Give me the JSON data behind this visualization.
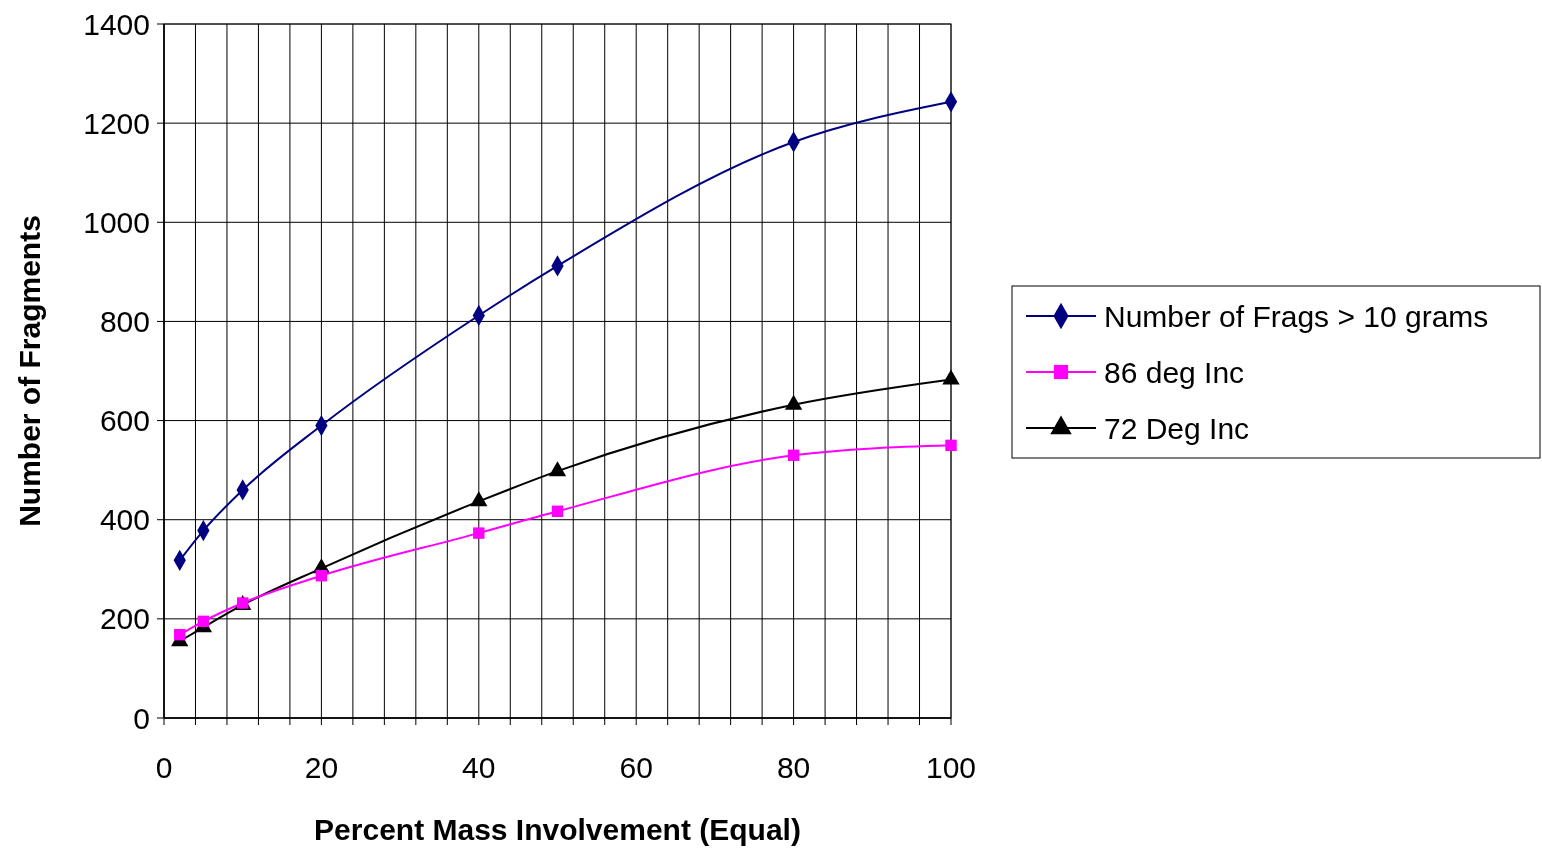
{
  "chart_data": {
    "type": "line",
    "xlabel": "Percent Mass Involvement (Equal)",
    "ylabel": "Number of Fragments",
    "xlim": [
      0,
      100
    ],
    "ylim": [
      0,
      1400
    ],
    "xticks": [
      0,
      {
        "value": 4,
        "label": null
      },
      {
        "value": 8,
        "label": null
      },
      {
        "value": 12,
        "label": null
      },
      {
        "value": 16,
        "label": null
      },
      20,
      {
        "value": 24,
        "label": null
      },
      {
        "value": 28,
        "label": null
      },
      {
        "value": 32,
        "label": null
      },
      {
        "value": 36,
        "label": null
      },
      40,
      {
        "value": 44,
        "label": null
      },
      {
        "value": 48,
        "label": null
      },
      {
        "value": 52,
        "label": null
      },
      {
        "value": 56,
        "label": null
      },
      60,
      {
        "value": 64,
        "label": null
      },
      {
        "value": 68,
        "label": null
      },
      {
        "value": 72,
        "label": null
      },
      {
        "value": 76,
        "label": null
      },
      80,
      {
        "value": 84,
        "label": null
      },
      {
        "value": 88,
        "label": null
      },
      {
        "value": 92,
        "label": null
      },
      {
        "value": 96,
        "label": null
      },
      100
    ],
    "yticks": [
      0,
      200,
      400,
      600,
      800,
      1000,
      1200,
      1400
    ],
    "x": [
      2,
      5,
      10,
      20,
      40,
      50,
      80,
      100
    ],
    "grid": true,
    "legend": "right",
    "line_style": "solid",
    "series": [
      {
        "name": "Number of Frags > 10 grams",
        "color": "#000080",
        "marker": "diamond",
        "values": [
          318,
          378,
          460,
          590,
          812,
          912,
          1162,
          1243
        ]
      },
      {
        "name": "86 deg Inc",
        "color": "#ff00ff",
        "marker": "square",
        "values": [
          168,
          195,
          232,
          287,
          373,
          417,
          530,
          550
        ]
      },
      {
        "name": "72 Deg Inc",
        "color": "#000000",
        "marker": "triangle",
        "values": [
          155,
          183,
          228,
          302,
          437,
          498,
          632,
          683
        ]
      }
    ]
  }
}
